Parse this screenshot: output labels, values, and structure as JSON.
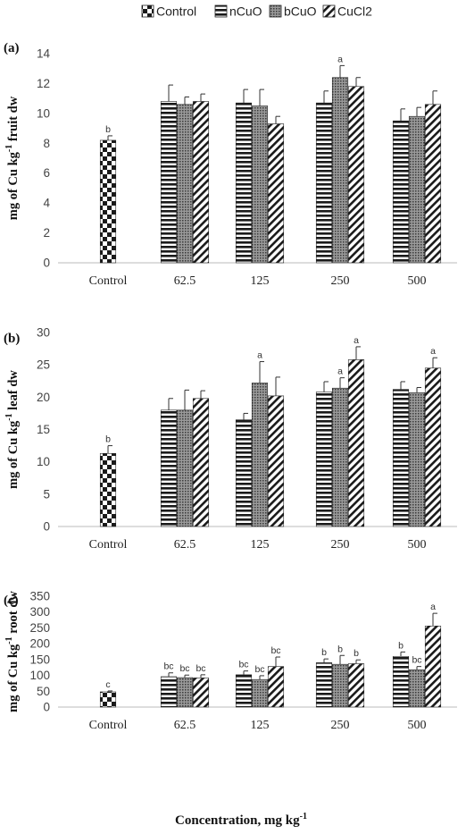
{
  "legend": [
    {
      "label": "Control",
      "pattern": "checker"
    },
    {
      "label": "nCuO",
      "pattern": "hstripe"
    },
    {
      "label": "bCuO",
      "pattern": "dots"
    },
    {
      "label": "CuCl2",
      "pattern": "diag"
    }
  ],
  "xlabel": "Concentration, mg kg",
  "xlabel_sup": "-1",
  "colors": {
    "bar_stroke": "#222222",
    "axis": "#bbbbbb",
    "error": "#333333"
  },
  "chart_data": [
    {
      "type": "bar",
      "panel": "(a)",
      "ylabel": "mg of Cu kg",
      "ylabel_sup": "-1",
      "ylabel_tail": " fruit dw",
      "ylim": [
        0,
        14
      ],
      "yticks": [
        0,
        2,
        4,
        6,
        8,
        10,
        12,
        14
      ],
      "categories": [
        "Control",
        "62.5",
        "125",
        "250",
        "500"
      ],
      "series": [
        {
          "name": "Control",
          "values": [
            8.2,
            null,
            null,
            null,
            null
          ],
          "errors": [
            0.3,
            null,
            null,
            null,
            null
          ],
          "labels": [
            "b",
            "",
            "",
            "",
            ""
          ]
        },
        {
          "name": "nCuO",
          "values": [
            null,
            10.8,
            10.7,
            10.7,
            9.5
          ],
          "errors": [
            null,
            1.1,
            0.9,
            0.8,
            0.8
          ],
          "labels": [
            "",
            "",
            "",
            "",
            ""
          ]
        },
        {
          "name": "bCuO",
          "values": [
            null,
            10.6,
            10.5,
            12.4,
            9.8
          ],
          "errors": [
            null,
            0.5,
            1.1,
            0.8,
            0.6
          ],
          "labels": [
            "",
            "",
            "",
            "a",
            ""
          ]
        },
        {
          "name": "CuCl2",
          "values": [
            null,
            10.8,
            9.3,
            11.8,
            10.6
          ],
          "errors": [
            null,
            0.5,
            0.5,
            0.6,
            0.9
          ],
          "labels": [
            "",
            "",
            "",
            "",
            ""
          ]
        }
      ]
    },
    {
      "type": "bar",
      "panel": "(b)",
      "ylabel": "mg of Cu kg",
      "ylabel_sup": "-1",
      "ylabel_tail": " leaf dw",
      "ylim": [
        0,
        30
      ],
      "yticks": [
        0,
        5,
        10,
        15,
        20,
        25,
        30
      ],
      "categories": [
        "Control",
        "62.5",
        "125",
        "250",
        "500"
      ],
      "series": [
        {
          "name": "Control",
          "values": [
            11.3,
            null,
            null,
            null,
            null
          ],
          "errors": [
            1.2,
            null,
            null,
            null,
            null
          ],
          "labels": [
            "b",
            "",
            "",
            "",
            ""
          ]
        },
        {
          "name": "nCuO",
          "values": [
            null,
            18.0,
            16.5,
            20.8,
            21.2
          ],
          "errors": [
            null,
            1.8,
            1.0,
            1.6,
            1.2
          ],
          "labels": [
            "",
            "",
            "",
            "",
            ""
          ]
        },
        {
          "name": "bCuO",
          "values": [
            null,
            18.0,
            22.2,
            21.4,
            20.7
          ],
          "errors": [
            null,
            3.1,
            3.3,
            1.6,
            0.8
          ],
          "labels": [
            "",
            "",
            "a",
            "a",
            ""
          ]
        },
        {
          "name": "CuCl2",
          "values": [
            null,
            19.8,
            20.2,
            25.8,
            24.5
          ],
          "errors": [
            null,
            1.2,
            2.9,
            2.0,
            1.6
          ],
          "labels": [
            "",
            "",
            "",
            "a",
            "a"
          ]
        }
      ]
    },
    {
      "type": "bar",
      "panel": "(c)",
      "ylabel": "mg of Cu kg",
      "ylabel_sup": "-1",
      "ylabel_tail": " root dw",
      "ylim": [
        0,
        350
      ],
      "yticks": [
        0,
        50,
        100,
        150,
        200,
        250,
        300,
        350
      ],
      "categories": [
        "Control",
        "62.5",
        "125",
        "250",
        "500"
      ],
      "series": [
        {
          "name": "Control",
          "values": [
            48,
            null,
            null,
            null,
            null
          ],
          "errors": [
            3,
            null,
            null,
            null,
            null
          ],
          "labels": [
            "c",
            "",
            "",
            "",
            ""
          ]
        },
        {
          "name": "nCuO",
          "values": [
            null,
            96,
            102,
            140,
            160
          ],
          "errors": [
            null,
            12,
            12,
            12,
            14
          ],
          "labels": [
            "",
            "bc",
            "bc",
            "b",
            "b"
          ]
        },
        {
          "name": "bCuO",
          "values": [
            null,
            93,
            87,
            135,
            118
          ],
          "errors": [
            null,
            8,
            12,
            28,
            10
          ],
          "labels": [
            "",
            "bc",
            "bc",
            "b",
            "bc"
          ]
        },
        {
          "name": "CuCl2",
          "values": [
            null,
            92,
            128,
            137,
            256
          ],
          "errors": [
            null,
            10,
            30,
            12,
            40
          ],
          "labels": [
            "",
            "bc",
            "bc",
            "b",
            "a"
          ]
        }
      ]
    }
  ]
}
